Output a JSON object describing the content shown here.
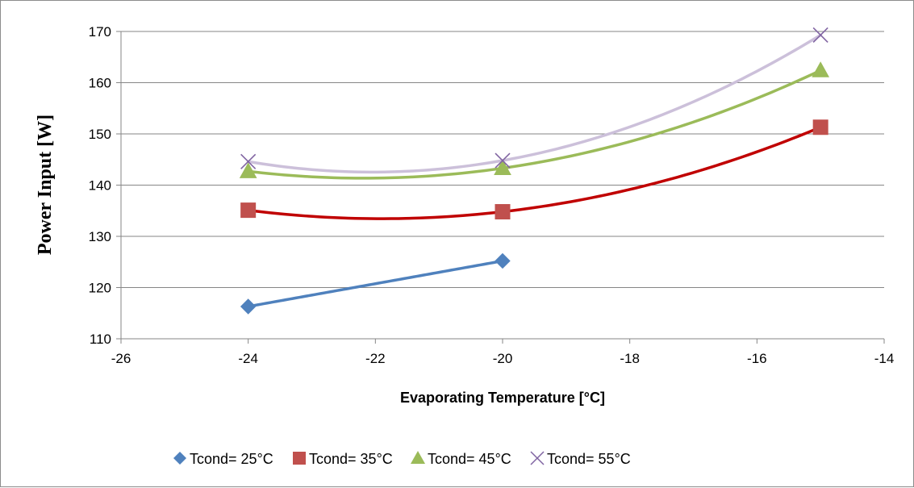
{
  "chart_data": {
    "type": "scatter",
    "title": "",
    "xlabel": "Evaporating Temperature [°C]",
    "ylabel": "Power Input [W]",
    "xlim": [
      -26,
      -14
    ],
    "ylim": [
      110,
      170
    ],
    "x_ticks": [
      -26,
      -24,
      -22,
      -20,
      -18,
      -16,
      -14
    ],
    "y_ticks": [
      110,
      120,
      130,
      140,
      150,
      160,
      170
    ],
    "grid": "horizontal",
    "legend_position": "bottom",
    "series": [
      {
        "name": "Tcond= 25°C",
        "marker": "diamond",
        "color": "#4f81bd",
        "line_color": "#4f81bd",
        "points": [
          [
            -24,
            116.3
          ],
          [
            -20,
            125.2
          ]
        ]
      },
      {
        "name": "Tcond= 35°C",
        "marker": "square",
        "color": "#c0504d",
        "line_color": "#c00000",
        "points": [
          [
            -24,
            135.1
          ],
          [
            -20,
            134.8
          ],
          [
            -15,
            151.3
          ]
        ]
      },
      {
        "name": "Tcond= 45°C",
        "marker": "triangle",
        "color": "#9bbb59",
        "line_color": "#9bbb59",
        "points": [
          [
            -24,
            142.7
          ],
          [
            -20,
            143.3
          ],
          [
            -15,
            162.4
          ]
        ]
      },
      {
        "name": "Tcond= 55°C",
        "marker": "x",
        "color": "#8064a2",
        "line_color": "#ccc0da",
        "points": [
          [
            -24,
            144.6
          ],
          [
            -20,
            144.8
          ],
          [
            -15,
            169.3
          ]
        ]
      }
    ]
  }
}
